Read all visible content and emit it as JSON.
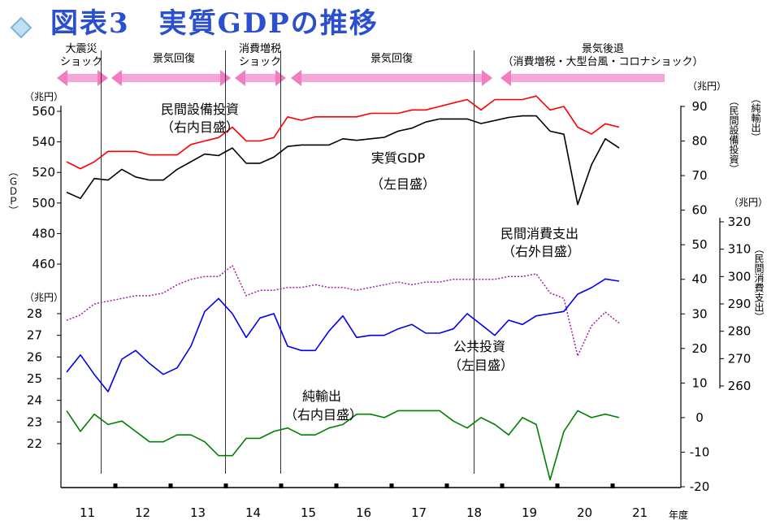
{
  "title": "図表3　実質GDPの推移",
  "phases": [
    {
      "label": [
        "大震災",
        "ショック"
      ]
    },
    {
      "label": [
        "景気回復"
      ]
    },
    {
      "label": [
        "消費増税",
        "ショック"
      ]
    },
    {
      "label": [
        "景気回復"
      ]
    },
    {
      "label": [
        "景気後退",
        "（消費増税・大型台風・コロナショック）"
      ]
    }
  ],
  "annotations": {
    "capex": [
      "民間設備投資",
      "（右内目盛）"
    ],
    "gdp": [
      "実質GDP",
      "（左目盛）"
    ],
    "consumption": [
      "民間消費支出",
      "（右外目盛）"
    ],
    "public": [
      "公共投資",
      "（左目盛）"
    ],
    "net_exports": [
      "純輸出",
      "（右内目盛）"
    ]
  },
  "axis_labels": {
    "left_unit_top": "（兆円）",
    "left_unit_mid": "（兆円）",
    "left_title": "（ＧＤＰ）",
    "right_inner_unit": "（兆円）",
    "right_inner_title_top": "（純輸出）",
    "right_inner_title_mid": "（民間設備投資）",
    "right_outer_unit": "（兆円）",
    "right_outer_title": "（民間消費支出）",
    "x_unit": "年度"
  },
  "chart_data": {
    "type": "line",
    "x_unit": "quarter (fiscal year)",
    "x_ticks": [
      "11",
      "12",
      "13",
      "14",
      "15",
      "16",
      "17",
      "18",
      "19",
      "20",
      "21"
    ],
    "quarters": [
      "11Q1",
      "11Q2",
      "11Q3",
      "11Q4",
      "12Q1",
      "12Q2",
      "12Q3",
      "12Q4",
      "13Q1",
      "13Q2",
      "13Q3",
      "13Q4",
      "14Q1",
      "14Q2",
      "14Q3",
      "14Q4",
      "15Q1",
      "15Q2",
      "15Q3",
      "15Q4",
      "16Q1",
      "16Q2",
      "16Q3",
      "16Q4",
      "17Q1",
      "17Q2",
      "17Q3",
      "17Q4",
      "18Q1",
      "18Q2",
      "18Q3",
      "18Q4",
      "19Q1",
      "19Q2",
      "19Q3",
      "19Q4",
      "20Q1",
      "20Q2",
      "20Q3",
      "20Q4",
      "21Q1"
    ],
    "left_upper_axis": {
      "ticks": [
        460,
        480,
        500,
        520,
        540,
        560
      ],
      "range": [
        450,
        565
      ]
    },
    "left_lower_axis": {
      "ticks": [
        22,
        23,
        24,
        25,
        26,
        27,
        28
      ],
      "range": [
        21.5,
        28.2
      ]
    },
    "right_inner_axis": {
      "ticks": [
        -20,
        -10,
        0,
        10,
        20,
        30,
        40,
        50,
        60,
        70,
        80,
        90
      ],
      "range": [
        -20,
        90
      ]
    },
    "right_outer_axis": {
      "ticks": [
        260,
        270,
        280,
        290,
        300,
        310,
        320
      ],
      "range": [
        258,
        322
      ]
    },
    "dividers_after_quarter": [
      "11Q3",
      "13Q4",
      "14Q4",
      "18Q2"
    ],
    "series": [
      {
        "name": "実質GDP",
        "axis": "left_upper",
        "color": "#000000",
        "style": "solid",
        "values": [
          507,
          503,
          516,
          515,
          522,
          517,
          515,
          515,
          522,
          527,
          532,
          531,
          536,
          526,
          526,
          530,
          537,
          538,
          538,
          538,
          542,
          541,
          542,
          543,
          547,
          549,
          553,
          555,
          555,
          555,
          552,
          554,
          556,
          557,
          557,
          547,
          545,
          499,
          525,
          542,
          536
        ]
      },
      {
        "name": "民間設備投資",
        "axis": "right_inner",
        "color": "#ff0000",
        "style": "solid",
        "values": [
          74,
          72,
          74,
          77,
          77,
          77,
          76,
          76,
          76,
          79,
          80,
          81,
          84,
          80,
          80,
          81,
          87,
          86,
          87,
          87,
          87,
          87,
          88,
          88,
          88,
          89,
          89,
          90,
          91,
          92,
          89,
          92,
          92,
          92,
          93,
          89,
          90,
          84,
          82,
          85,
          84
        ]
      },
      {
        "name": "民間消費支出",
        "axis": "right_outer",
        "color": "#a020a0",
        "style": "dotted",
        "values": [
          284,
          286,
          290,
          291,
          292,
          293,
          293,
          294,
          297,
          299,
          300,
          300,
          304,
          293,
          295,
          295,
          296,
          296,
          297,
          296,
          296,
          295,
          296,
          297,
          298,
          297,
          298,
          298,
          299,
          299,
          299,
          299,
          300,
          300,
          301,
          294,
          292,
          271,
          282,
          287,
          283
        ]
      },
      {
        "name": "公共投資",
        "axis": "left_lower",
        "color": "#0000ee",
        "style": "solid",
        "values": [
          25.3,
          26.1,
          25.2,
          24.4,
          25.9,
          26.3,
          25.7,
          25.2,
          25.5,
          26.5,
          28.1,
          28.7,
          28.0,
          26.9,
          27.8,
          28.0,
          26.5,
          26.3,
          26.3,
          27.2,
          27.9,
          26.9,
          27.0,
          27.0,
          27.3,
          27.5,
          27.1,
          27.1,
          27.3,
          28.0,
          27.5,
          27.0,
          27.7,
          27.5,
          27.9,
          28.0,
          28.1,
          28.9,
          29.2,
          29.6,
          29.5
        ]
      },
      {
        "name": "純輸出",
        "axis": "right_inner",
        "color": "#008000",
        "style": "solid",
        "values": [
          2,
          -4,
          1,
          -2,
          -1,
          -4,
          -7,
          -7,
          -5,
          -5,
          -7,
          -11,
          -11,
          -6,
          -6,
          -4,
          -3,
          -5,
          -5,
          -3,
          -2,
          1,
          1,
          0,
          2,
          2,
          2,
          2,
          -1,
          -3,
          0,
          -2,
          -5,
          0,
          -2,
          -18,
          -4,
          2,
          0,
          1,
          0
        ]
      }
    ]
  }
}
